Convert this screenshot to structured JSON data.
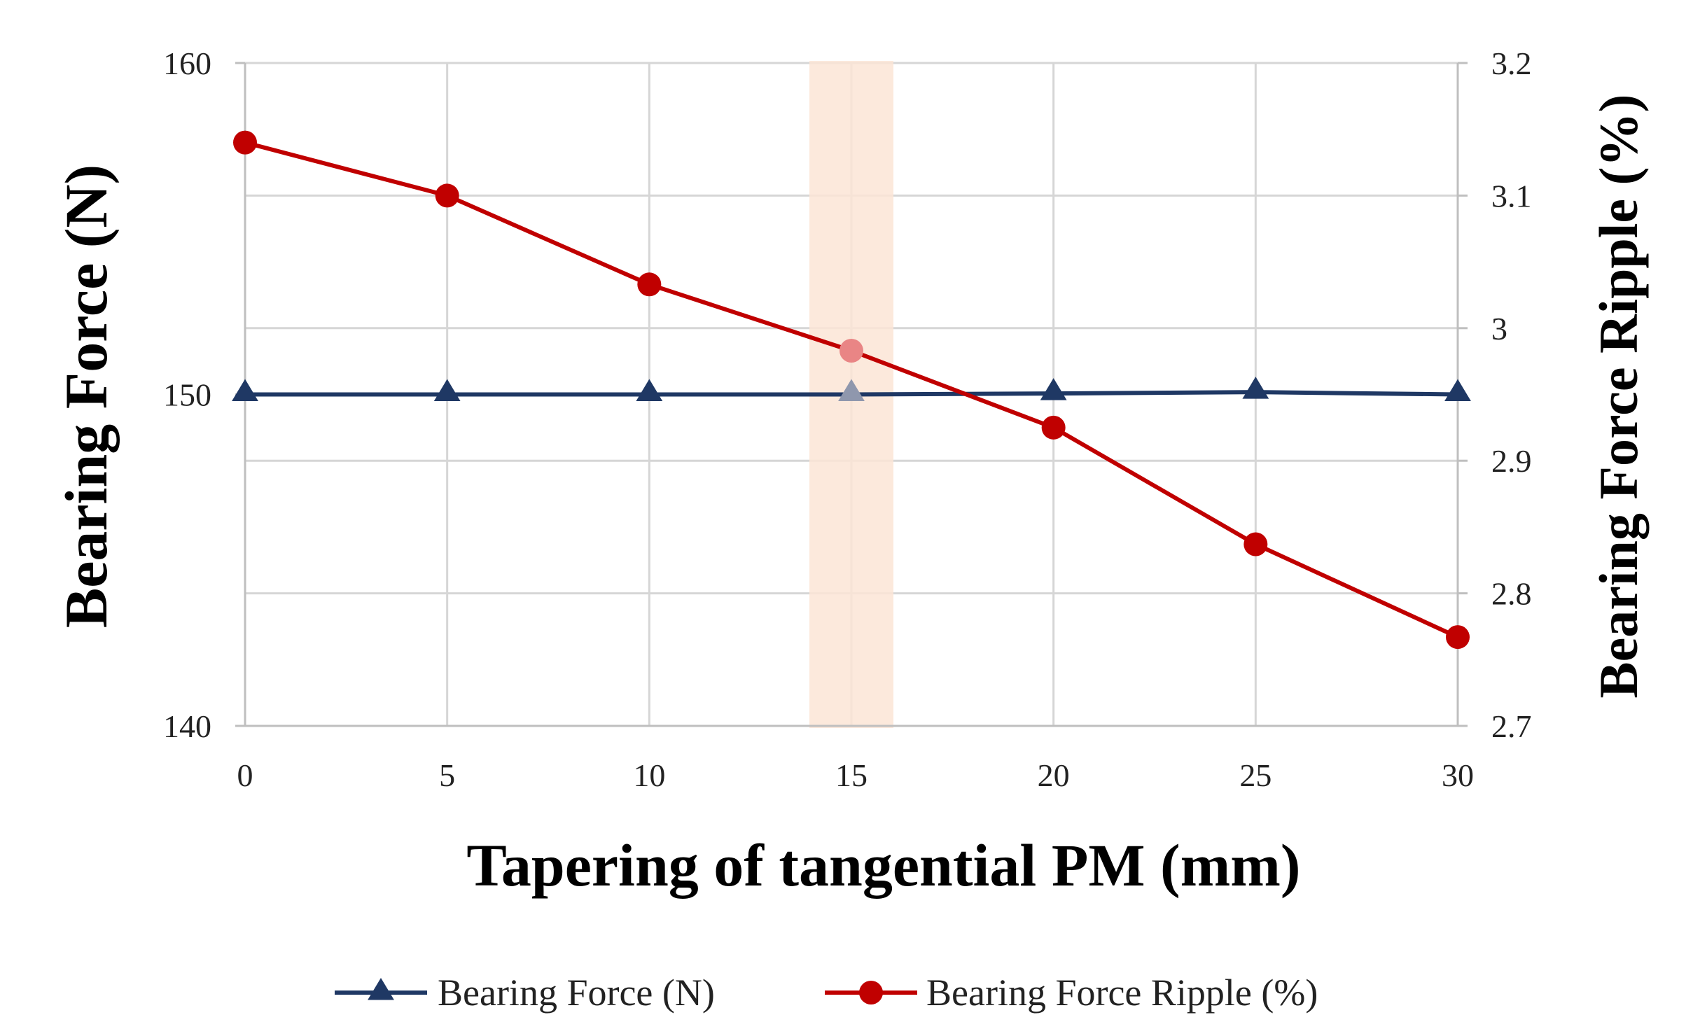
{
  "chart_data": {
    "type": "line",
    "title": "",
    "xlabel": "Tapering of tangential PM (mm)",
    "ylabel": "Bearing Force (N)",
    "y2label": "Bearing Force Ripple (%)",
    "x": [
      0,
      5,
      10,
      15,
      20,
      25,
      30
    ],
    "xlim": [
      0,
      30
    ],
    "ylim": [
      140,
      160
    ],
    "y2lim": [
      2.7,
      3.2
    ],
    "x_ticks": [
      "0",
      "5",
      "10",
      "15",
      "20",
      "25",
      "30"
    ],
    "y_ticks": [
      "140",
      "150",
      "160"
    ],
    "y2_ticks": [
      "2.7",
      "2.8",
      "2.9",
      "3",
      "3.1",
      "3.2"
    ],
    "grid": true,
    "highlight_x": 15,
    "legend_position": "bottom",
    "series": [
      {
        "name": "Bearing Force (N)",
        "axis": "left",
        "marker": "triangle",
        "color": "#1f3864",
        "values": [
          150,
          150,
          150,
          150,
          150.03,
          150.07,
          150
        ]
      },
      {
        "name": "Bearing Force Ripple (%)",
        "axis": "right",
        "marker": "circle",
        "color": "#c00000",
        "values": [
          3.14,
          3.1,
          3.033,
          2.983,
          2.925,
          2.837,
          2.767
        ]
      }
    ]
  }
}
